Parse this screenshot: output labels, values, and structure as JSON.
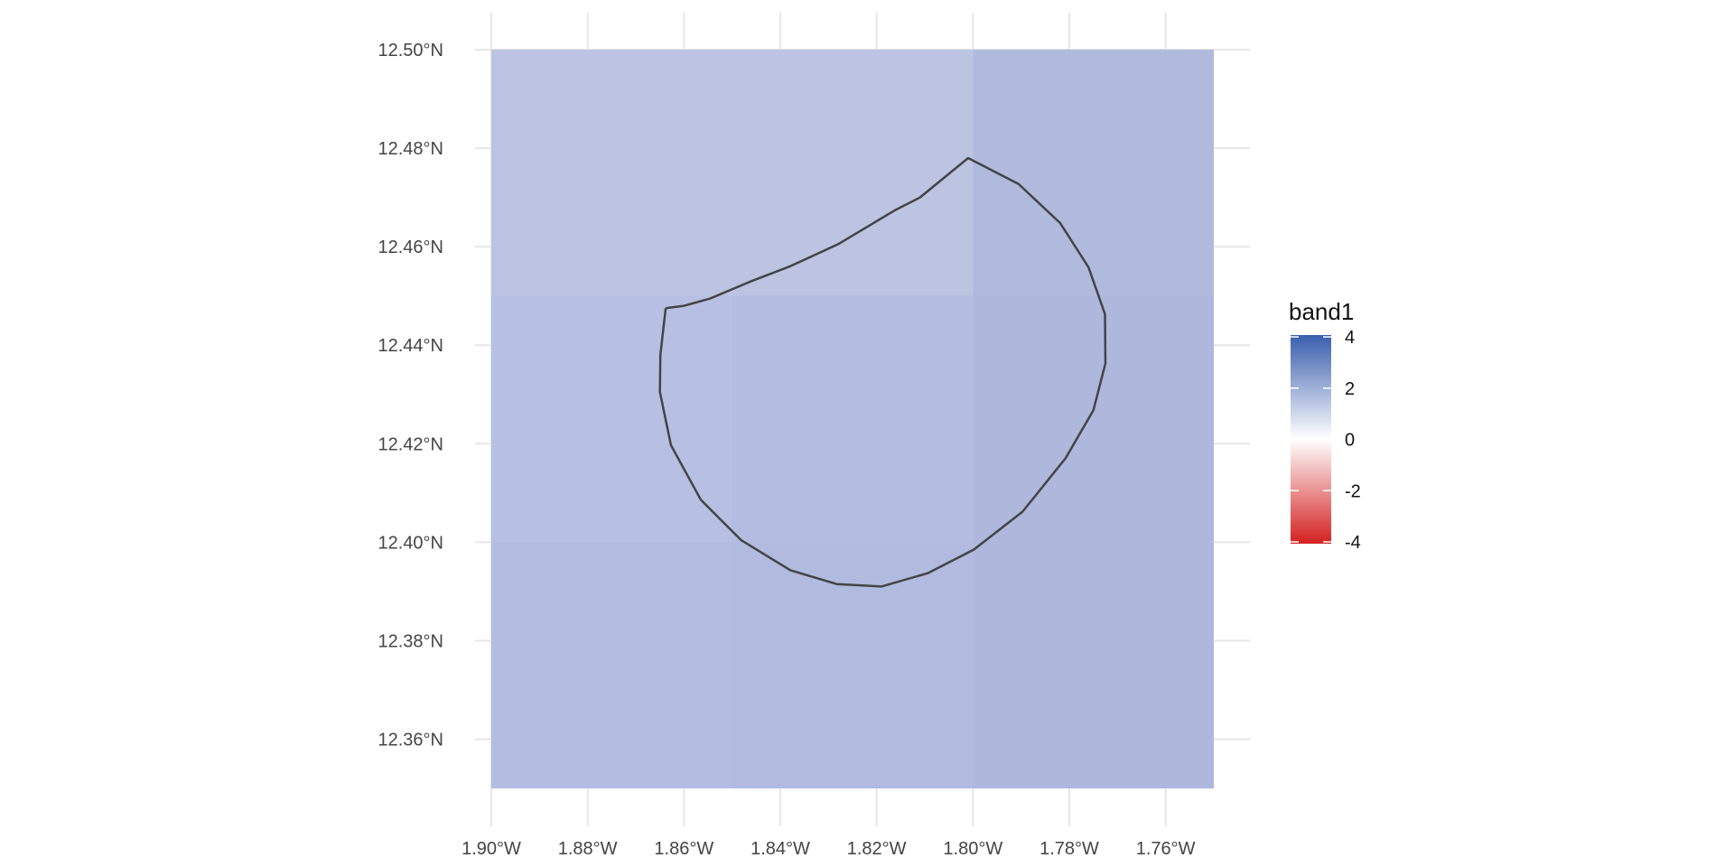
{
  "map": {
    "x_axis": {
      "range": [
        -1.9,
        -1.75
      ],
      "ticks": [
        {
          "value": -1.9,
          "label": "1.90°W"
        },
        {
          "value": -1.88,
          "label": "1.88°W"
        },
        {
          "value": -1.86,
          "label": "1.86°W"
        },
        {
          "value": -1.84,
          "label": "1.84°W"
        },
        {
          "value": -1.82,
          "label": "1.82°W"
        },
        {
          "value": -1.8,
          "label": "1.80°W"
        },
        {
          "value": -1.78,
          "label": "1.78°W"
        },
        {
          "value": -1.76,
          "label": "1.76°W"
        }
      ]
    },
    "y_axis": {
      "range": [
        12.35,
        12.5
      ],
      "ticks": [
        {
          "value": 12.5,
          "label": "12.50°N"
        },
        {
          "value": 12.48,
          "label": "12.48°N"
        },
        {
          "value": 12.46,
          "label": "12.46°N"
        },
        {
          "value": 12.44,
          "label": "12.44°N"
        },
        {
          "value": 12.42,
          "label": "12.42°N"
        },
        {
          "value": 12.4,
          "label": "12.40°N"
        },
        {
          "value": 12.38,
          "label": "12.38°N"
        },
        {
          "value": 12.36,
          "label": "12.36°N"
        }
      ]
    },
    "raster_cells": [
      {
        "lon": [
          -1.9,
          -1.85
        ],
        "lat": [
          12.45,
          12.5
        ],
        "color": "#bcc4e2"
      },
      {
        "lon": [
          -1.85,
          -1.8
        ],
        "lat": [
          12.45,
          12.5
        ],
        "color": "#bcc4e2"
      },
      {
        "lon": [
          -1.8,
          -1.75
        ],
        "lat": [
          12.45,
          12.5
        ],
        "color": "#afbadd"
      },
      {
        "lon": [
          -1.9,
          -1.85
        ],
        "lat": [
          12.4,
          12.45
        ],
        "color": "#b7c0e2"
      },
      {
        "lon": [
          -1.85,
          -1.8
        ],
        "lat": [
          12.4,
          12.45
        ],
        "color": "#b3bde1"
      },
      {
        "lon": [
          -1.8,
          -1.75
        ],
        "lat": [
          12.4,
          12.45
        ],
        "color": "#adb8dc"
      },
      {
        "lon": [
          -1.9,
          -1.85
        ],
        "lat": [
          12.35,
          12.4
        ],
        "color": "#b3bde1"
      },
      {
        "lon": [
          -1.85,
          -1.8
        ],
        "lat": [
          12.35,
          12.4
        ],
        "color": "#b1bbdf"
      },
      {
        "lon": [
          -1.8,
          -1.75
        ],
        "lat": [
          12.35,
          12.4
        ],
        "color": "#adb8dc"
      }
    ],
    "boundary": [
      [
        -1.8638,
        12.4475
      ],
      [
        -1.86,
        12.448
      ],
      [
        -1.8545,
        12.4495
      ],
      [
        -1.846,
        12.453
      ],
      [
        -1.838,
        12.456
      ],
      [
        -1.828,
        12.4605
      ],
      [
        -1.816,
        12.4675
      ],
      [
        -1.811,
        12.47
      ],
      [
        -1.801,
        12.478
      ],
      [
        -1.7905,
        12.4727
      ],
      [
        -1.7819,
        12.4648
      ],
      [
        -1.776,
        12.4558
      ],
      [
        -1.7726,
        12.4463
      ],
      [
        -1.7725,
        12.4363
      ],
      [
        -1.775,
        12.4268
      ],
      [
        -1.7808,
        12.417
      ],
      [
        -1.7897,
        12.4062
      ],
      [
        -1.7998,
        12.3985
      ],
      [
        -1.8094,
        12.3937
      ],
      [
        -1.819,
        12.391
      ],
      [
        -1.8283,
        12.3915
      ],
      [
        -1.8379,
        12.3943
      ],
      [
        -1.8481,
        12.4004
      ],
      [
        -1.8565,
        12.4086
      ],
      [
        -1.8627,
        12.4197
      ],
      [
        -1.865,
        12.4305
      ],
      [
        -1.8649,
        12.438
      ],
      [
        -1.8638,
        12.4475
      ]
    ],
    "boundary_color": "#444444",
    "grid_color": "#e6e6e6"
  },
  "legend": {
    "title": "band1",
    "range": [
      -4,
      4
    ],
    "labels": [
      "4",
      "2",
      "0",
      "-2",
      "-4"
    ],
    "label_values": [
      4,
      2,
      0,
      -2,
      -4
    ],
    "colors": {
      "high": "#3a5fad",
      "mid": "#ffffff",
      "low": "#d42020"
    }
  }
}
